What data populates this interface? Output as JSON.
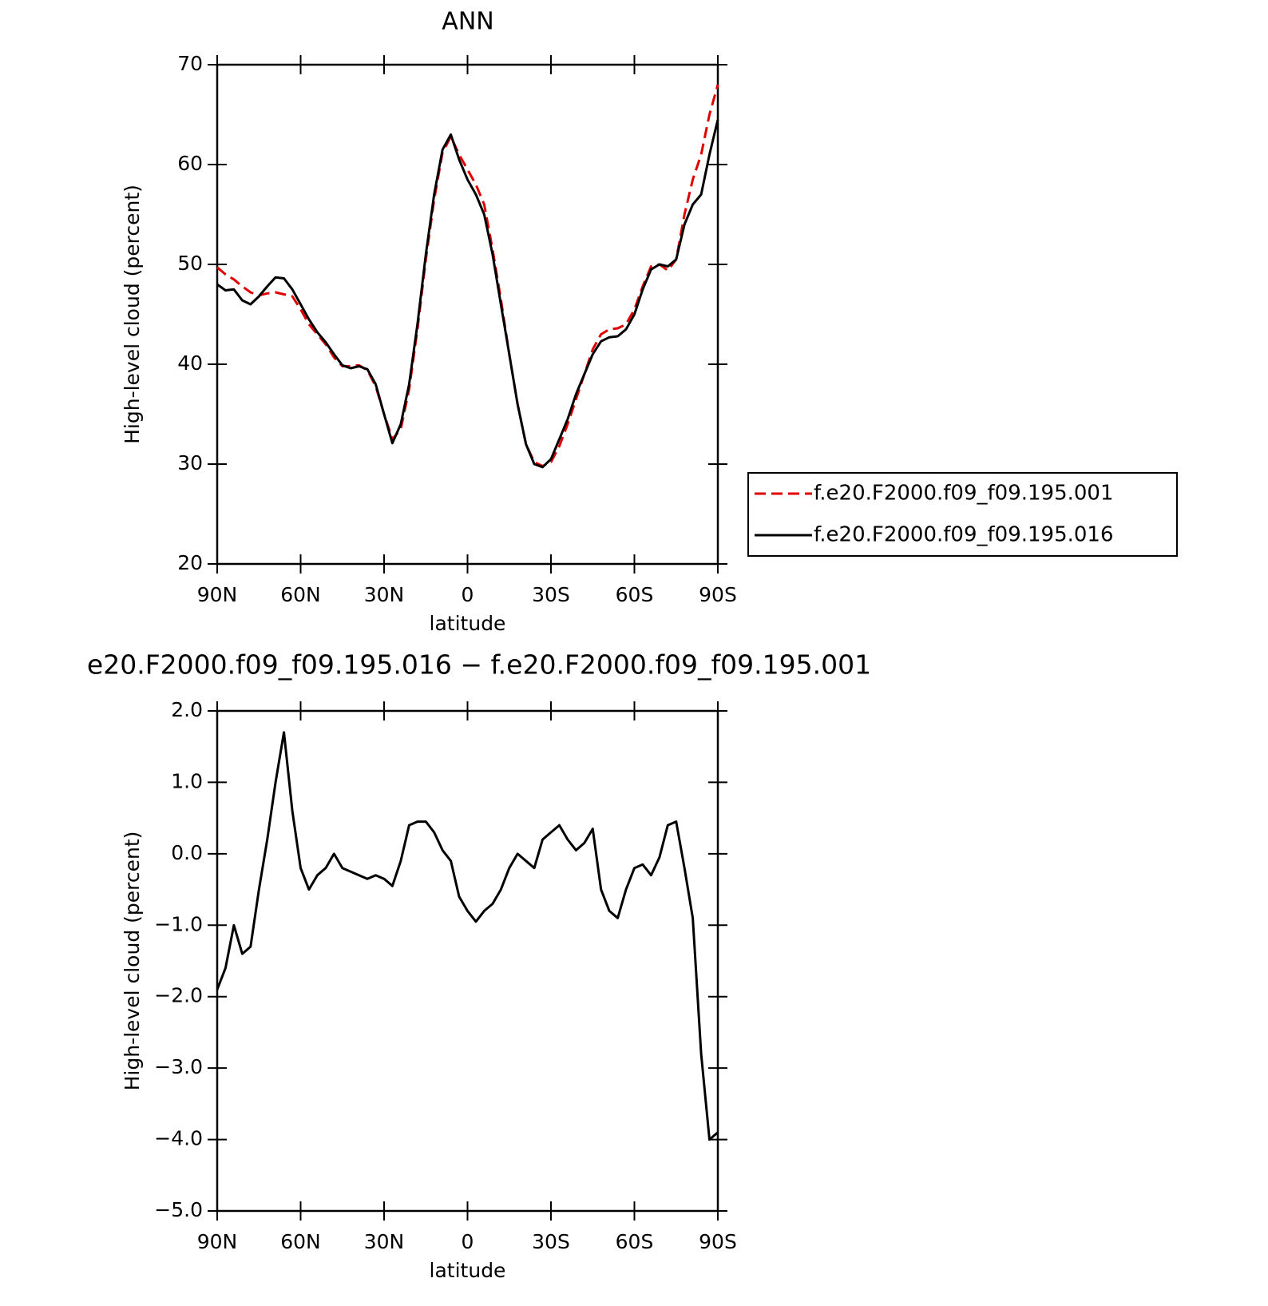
{
  "chart_data": [
    {
      "type": "line",
      "title": "ANN",
      "xlabel": "latitude",
      "ylabel": "High-level cloud (percent)",
      "x": [
        90,
        87,
        84,
        81,
        78,
        75,
        72,
        69,
        66,
        63,
        60,
        57,
        54,
        51,
        48,
        45,
        42,
        39,
        36,
        33,
        30,
        27,
        24,
        21,
        18,
        15,
        12,
        9,
        6,
        3,
        0,
        -3,
        -6,
        -9,
        -12,
        -15,
        -18,
        -21,
        -24,
        -27,
        -30,
        -33,
        -36,
        -39,
        -42,
        -45,
        -48,
        -51,
        -54,
        -57,
        -60,
        -63,
        -66,
        -69,
        -72,
        -75,
        -78,
        -81,
        -84,
        -87,
        -90
      ],
      "series": [
        {
          "name": "f.e20.F2000.f09_f09.195.001",
          "color": "#e00000",
          "dash": true,
          "values": [
            49.7,
            49,
            48.5,
            47.8,
            47.2,
            46.9,
            47.1,
            47.2,
            47,
            46.8,
            45.5,
            44,
            43,
            42,
            40.7,
            39.8,
            39.8,
            39.9,
            39.4,
            37.8,
            35,
            32.5,
            33.5,
            37.5,
            43.5,
            50.5,
            56.5,
            61.2,
            62.8,
            61,
            59.5,
            58,
            56,
            51.5,
            46.5,
            41,
            36,
            32,
            30.2,
            29.8,
            30.2,
            31.8,
            34,
            36.5,
            39,
            41.5,
            43,
            43.5,
            43.6,
            44,
            45.5,
            47.8,
            49.8,
            50,
            49.4,
            50.5,
            55,
            58.5,
            61,
            65,
            68
          ]
        },
        {
          "name": "f.e20.F2000.f09_f09.195.016",
          "color": "#000000",
          "dash": false,
          "values": [
            48,
            47.4,
            47.5,
            46.4,
            46,
            46.8,
            47.8,
            48.7,
            48.6,
            47.5,
            46,
            44.5,
            43.2,
            42.2,
            41,
            39.9,
            39.6,
            39.8,
            39.5,
            38,
            35,
            32.1,
            34,
            38,
            44,
            51,
            57,
            61.5,
            63,
            60.5,
            58.5,
            57,
            55,
            51,
            46,
            41,
            36,
            32,
            30,
            29.7,
            30.5,
            32.5,
            34.5,
            37,
            39,
            41,
            42.3,
            42.7,
            42.8,
            43.5,
            45,
            47.5,
            49.5,
            50,
            49.8,
            50.5,
            54,
            56,
            57,
            61,
            64.5
          ]
        }
      ],
      "xlim": [
        90,
        -90
      ],
      "xticks": [
        {
          "value": 90,
          "label": "90N"
        },
        {
          "value": 60,
          "label": "60N"
        },
        {
          "value": 30,
          "label": "30N"
        },
        0,
        {
          "value": -30,
          "label": "30S"
        },
        {
          "value": -60,
          "label": "60S"
        },
        {
          "value": -90,
          "label": "90S"
        }
      ],
      "ylim": [
        20,
        70
      ],
      "yticks": [
        20,
        30,
        40,
        50,
        60,
        70
      ],
      "legend": "right"
    },
    {
      "type": "line",
      "title": "e20.F2000.f09_f09.195.016 − f.e20.F2000.f09_f09.195.001",
      "xlabel": "latitude",
      "ylabel": "High-level cloud (percent)",
      "x": [
        90,
        87,
        84,
        81,
        78,
        75,
        72,
        69,
        66,
        63,
        60,
        57,
        54,
        51,
        48,
        45,
        42,
        39,
        36,
        33,
        30,
        27,
        24,
        21,
        18,
        15,
        12,
        9,
        6,
        3,
        0,
        -3,
        -6,
        -9,
        -12,
        -15,
        -18,
        -21,
        -24,
        -27,
        -30,
        -33,
        -36,
        -39,
        -42,
        -45,
        -48,
        -51,
        -54,
        -57,
        -60,
        -63,
        -66,
        -69,
        -72,
        -75,
        -78,
        -81,
        -84,
        -87,
        -90
      ],
      "series": [
        {
          "color": "#000000",
          "dash": false,
          "values": [
            -1.9,
            -1.6,
            -1.0,
            -1.4,
            -1.3,
            -0.5,
            0.2,
            1.0,
            1.7,
            0.6,
            -0.2,
            -0.5,
            -0.3,
            -0.2,
            0.0,
            -0.2,
            -0.25,
            -0.3,
            -0.35,
            -0.3,
            -0.35,
            -0.45,
            -0.1,
            0.4,
            0.45,
            0.45,
            0.3,
            0.05,
            -0.1,
            -0.6,
            -0.8,
            -0.95,
            -0.8,
            -0.7,
            -0.5,
            -0.2,
            0.0,
            -0.1,
            -0.2,
            0.2,
            0.3,
            0.4,
            0.2,
            0.05,
            0.15,
            0.35,
            -0.5,
            -0.8,
            -0.9,
            -0.5,
            -0.2,
            -0.15,
            -0.3,
            -0.05,
            0.4,
            0.45,
            -0.2,
            -0.9,
            -2.8,
            -4.0,
            -3.9
          ]
        }
      ],
      "xlim": [
        90,
        -90
      ],
      "xticks": [
        {
          "value": 90,
          "label": "90N"
        },
        {
          "value": 60,
          "label": "60N"
        },
        {
          "value": 30,
          "label": "30N"
        },
        0,
        {
          "value": -30,
          "label": "30S"
        },
        {
          "value": -60,
          "label": "60S"
        },
        {
          "value": -90,
          "label": "90S"
        }
      ],
      "ylim": [
        -5,
        2
      ],
      "yticks": [
        {
          "value": -5,
          "label": "−5.0"
        },
        {
          "value": -4,
          "label": "−4.0"
        },
        {
          "value": -3,
          "label": "−3.0"
        },
        {
          "value": -2,
          "label": "−2.0"
        },
        {
          "value": -1,
          "label": "−1.0"
        },
        {
          "value": 0,
          "label": "0.0"
        },
        {
          "value": 1,
          "label": "1.0"
        },
        {
          "value": 2,
          "label": "2.0"
        }
      ]
    }
  ]
}
